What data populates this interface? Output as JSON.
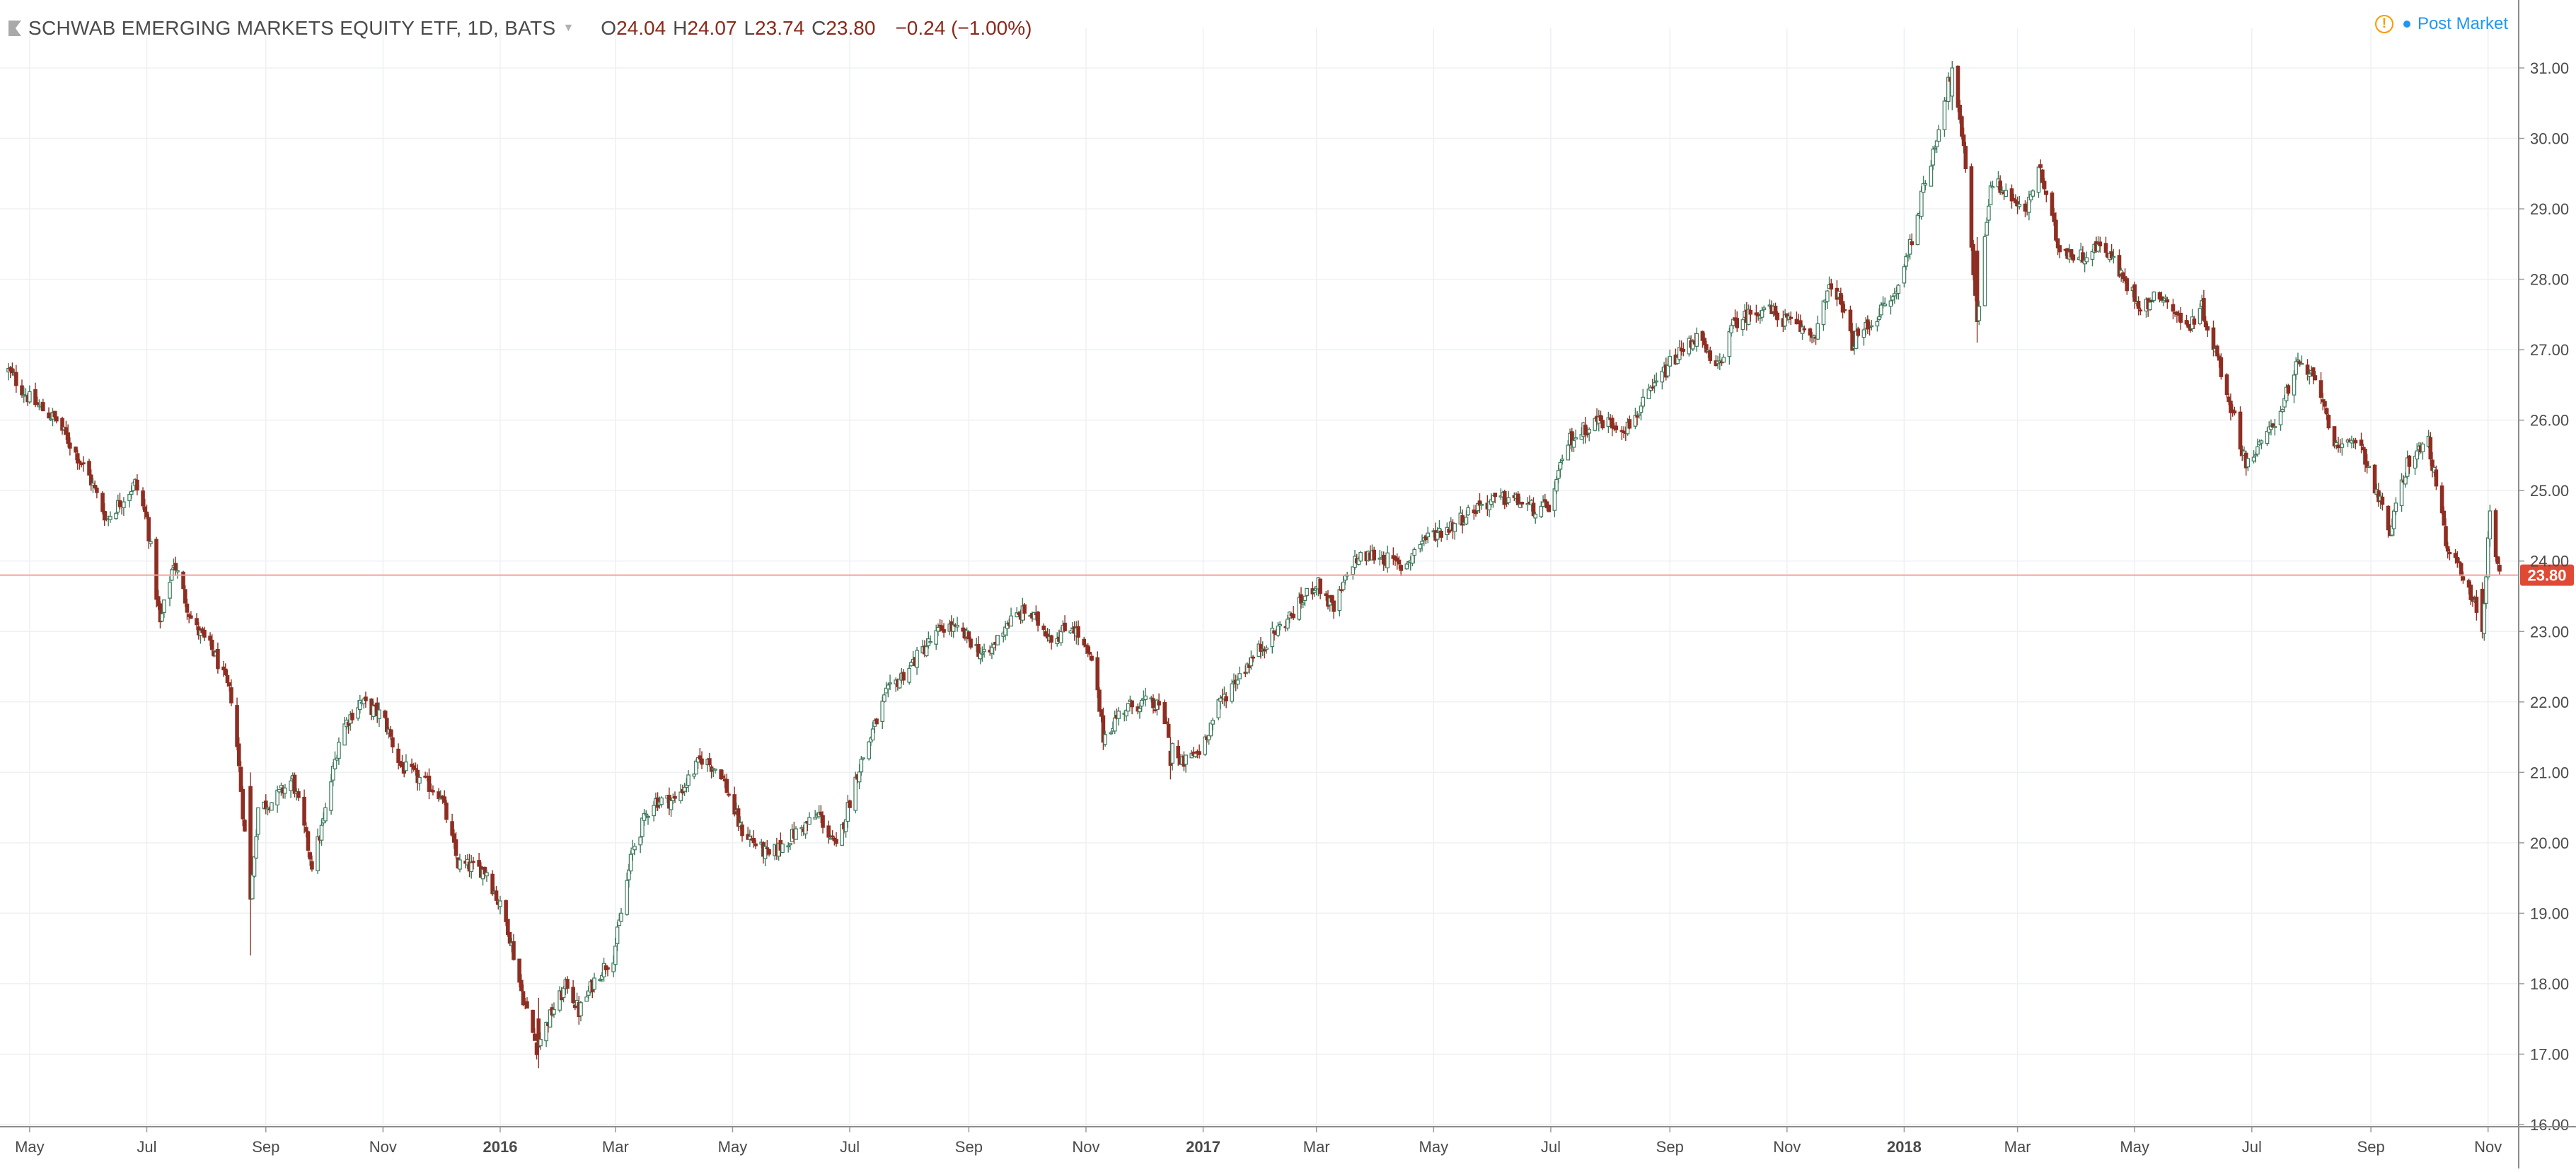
{
  "header": {
    "title": "SCHWAB EMERGING MARKETS EQUITY ETF, 1D, BATS",
    "open_key": "O",
    "open": "24.04",
    "high_key": "H",
    "high": "24.07",
    "low_key": "L",
    "low": "23.74",
    "close_key": "C",
    "close": "23.80",
    "change": "−0.24 (−1.00%)"
  },
  "post_market": {
    "label": "Post Market",
    "warning_icon": "warning-circle-icon",
    "indicator_icon": "status-dot-icon"
  },
  "colors": {
    "up": "#3d7a5c",
    "up_fill": "#ffffff",
    "down": "#8e2e22",
    "down_fill": "#8e2e22",
    "last_price_line": "#f0a59b",
    "last_price_badge": "#e04a35",
    "grid": "#eef0f3",
    "axis_text": "#4a4a4a"
  },
  "chart_data": {
    "type": "candlestick",
    "instrument": "SCHWAB EMERGING MARKETS EQUITY ETF",
    "interval": "1D",
    "exchange": "BATS",
    "x_range": [
      "2015-04-20",
      "2018-11-07"
    ],
    "ylim": [
      16,
      31.2
    ],
    "y_ticks": [
      "16.00",
      "17.00",
      "18.00",
      "19.00",
      "20.00",
      "21.00",
      "22.00",
      "23.00",
      "24.00",
      "25.00",
      "26.00",
      "27.00",
      "28.00",
      "29.00",
      "30.00",
      "31.00"
    ],
    "x_ticks": [
      {
        "date": "2015-05-01",
        "label": "May",
        "bold": false
      },
      {
        "date": "2015-07-01",
        "label": "Jul",
        "bold": false
      },
      {
        "date": "2015-09-01",
        "label": "Sep",
        "bold": false
      },
      {
        "date": "2015-11-01",
        "label": "Nov",
        "bold": false
      },
      {
        "date": "2016-01-01",
        "label": "2016",
        "bold": true
      },
      {
        "date": "2016-03-01",
        "label": "Mar",
        "bold": false
      },
      {
        "date": "2016-05-01",
        "label": "May",
        "bold": false
      },
      {
        "date": "2016-07-01",
        "label": "Jul",
        "bold": false
      },
      {
        "date": "2016-09-01",
        "label": "Sep",
        "bold": false
      },
      {
        "date": "2016-11-01",
        "label": "Nov",
        "bold": false
      },
      {
        "date": "2017-01-01",
        "label": "2017",
        "bold": true
      },
      {
        "date": "2017-03-01",
        "label": "Mar",
        "bold": false
      },
      {
        "date": "2017-05-01",
        "label": "May",
        "bold": false
      },
      {
        "date": "2017-07-01",
        "label": "Jul",
        "bold": false
      },
      {
        "date": "2017-09-01",
        "label": "Sep",
        "bold": false
      },
      {
        "date": "2017-11-01",
        "label": "Nov",
        "bold": false
      },
      {
        "date": "2018-01-01",
        "label": "2018",
        "bold": true
      },
      {
        "date": "2018-03-01",
        "label": "Mar",
        "bold": false
      },
      {
        "date": "2018-05-01",
        "label": "May",
        "bold": false
      },
      {
        "date": "2018-07-01",
        "label": "Jul",
        "bold": false
      },
      {
        "date": "2018-09-01",
        "label": "Sep",
        "bold": false
      },
      {
        "date": "2018-11-01",
        "label": "Nov",
        "bold": false
      }
    ],
    "last_price": 23.8,
    "last_price_label": "23.80",
    "close_path": [
      [
        "2015-04-20",
        26.7
      ],
      [
        "2015-05-01",
        26.3
      ],
      [
        "2015-05-15",
        26.0
      ],
      [
        "2015-06-01",
        25.2
      ],
      [
        "2015-06-10",
        24.6
      ],
      [
        "2015-06-25",
        25.1
      ],
      [
        "2015-07-01",
        24.6
      ],
      [
        "2015-07-08",
        23.1
      ],
      [
        "2015-07-15",
        24.0
      ],
      [
        "2015-07-25",
        23.1
      ],
      [
        "2015-08-05",
        22.7
      ],
      [
        "2015-08-15",
        22.0
      ],
      [
        "2015-08-24",
        19.2
      ],
      [
        "2015-08-28",
        20.5
      ],
      [
        "2015-09-05",
        20.6
      ],
      [
        "2015-09-15",
        20.9
      ],
      [
        "2015-09-25",
        19.7
      ],
      [
        "2015-10-01",
        20.3
      ],
      [
        "2015-10-10",
        21.6
      ],
      [
        "2015-10-20",
        22.0
      ],
      [
        "2015-11-01",
        21.8
      ],
      [
        "2015-11-10",
        21.1
      ],
      [
        "2015-11-20",
        20.9
      ],
      [
        "2015-12-01",
        20.7
      ],
      [
        "2015-12-10",
        19.7
      ],
      [
        "2015-12-25",
        19.6
      ],
      [
        "2016-01-05",
        18.8
      ],
      [
        "2016-01-12",
        17.9
      ],
      [
        "2016-01-20",
        17.1
      ],
      [
        "2016-01-28",
        17.6
      ],
      [
        "2016-02-05",
        18.0
      ],
      [
        "2016-02-11",
        17.6
      ],
      [
        "2016-02-20",
        18.1
      ],
      [
        "2016-02-29",
        18.4
      ],
      [
        "2016-03-10",
        19.9
      ],
      [
        "2016-03-20",
        20.6
      ],
      [
        "2016-04-01",
        20.6
      ],
      [
        "2016-04-15",
        21.2
      ],
      [
        "2016-04-25",
        21.0
      ],
      [
        "2016-05-05",
        20.2
      ],
      [
        "2016-05-20",
        19.8
      ],
      [
        "2016-06-01",
        20.1
      ],
      [
        "2016-06-15",
        20.4
      ],
      [
        "2016-06-24",
        19.9
      ],
      [
        "2016-07-05",
        21.0
      ],
      [
        "2016-07-20",
        22.1
      ],
      [
        "2016-08-10",
        22.8
      ],
      [
        "2016-08-20",
        23.1
      ],
      [
        "2016-09-01",
        22.9
      ],
      [
        "2016-09-10",
        22.6
      ],
      [
        "2016-09-20",
        23.1
      ],
      [
        "2016-10-01",
        23.3
      ],
      [
        "2016-10-15",
        22.9
      ],
      [
        "2016-10-25",
        23.1
      ],
      [
        "2016-11-05",
        22.5
      ],
      [
        "2016-11-10",
        21.5
      ],
      [
        "2016-11-20",
        21.9
      ],
      [
        "2016-12-01",
        22.0
      ],
      [
        "2016-12-10",
        21.9
      ],
      [
        "2016-12-20",
        21.1
      ],
      [
        "2016-12-30",
        21.3
      ],
      [
        "2017-01-10",
        22.0
      ],
      [
        "2017-01-20",
        22.4
      ],
      [
        "2017-02-01",
        22.8
      ],
      [
        "2017-02-15",
        23.2
      ],
      [
        "2017-03-01",
        23.7
      ],
      [
        "2017-03-10",
        23.3
      ],
      [
        "2017-03-20",
        24.0
      ],
      [
        "2017-04-01",
        24.1
      ],
      [
        "2017-04-15",
        23.9
      ],
      [
        "2017-04-25",
        24.3
      ],
      [
        "2017-05-10",
        24.5
      ],
      [
        "2017-05-25",
        24.8
      ],
      [
        "2017-06-10",
        24.9
      ],
      [
        "2017-06-25",
        24.7
      ],
      [
        "2017-07-01",
        24.8
      ],
      [
        "2017-07-10",
        25.7
      ],
      [
        "2017-07-25",
        26.0
      ],
      [
        "2017-08-10",
        25.9
      ],
      [
        "2017-08-20",
        26.3
      ],
      [
        "2017-09-01",
        26.8
      ],
      [
        "2017-09-15",
        27.2
      ],
      [
        "2017-09-25",
        26.7
      ],
      [
        "2017-10-05",
        27.4
      ],
      [
        "2017-10-20",
        27.6
      ],
      [
        "2017-11-01",
        27.4
      ],
      [
        "2017-11-15",
        27.2
      ],
      [
        "2017-11-25",
        28.0
      ],
      [
        "2017-12-05",
        27.1
      ],
      [
        "2017-12-15",
        27.4
      ],
      [
        "2017-12-28",
        27.8
      ],
      [
        "2018-01-05",
        28.6
      ],
      [
        "2018-01-15",
        29.7
      ],
      [
        "2018-01-26",
        31.0
      ],
      [
        "2018-02-02",
        29.6
      ],
      [
        "2018-02-08",
        27.4
      ],
      [
        "2018-02-15",
        29.4
      ],
      [
        "2018-02-25",
        29.2
      ],
      [
        "2018-03-05",
        28.9
      ],
      [
        "2018-03-12",
        29.6
      ],
      [
        "2018-03-22",
        28.5
      ],
      [
        "2018-04-01",
        28.3
      ],
      [
        "2018-04-15",
        28.5
      ],
      [
        "2018-04-25",
        28.0
      ],
      [
        "2018-05-05",
        27.6
      ],
      [
        "2018-05-15",
        27.8
      ],
      [
        "2018-05-28",
        27.3
      ],
      [
        "2018-06-05",
        27.6
      ],
      [
        "2018-06-15",
        26.7
      ],
      [
        "2018-06-28",
        25.4
      ],
      [
        "2018-07-05",
        25.6
      ],
      [
        "2018-07-15",
        26.1
      ],
      [
        "2018-07-25",
        26.8
      ],
      [
        "2018-08-05",
        26.5
      ],
      [
        "2018-08-15",
        25.5
      ],
      [
        "2018-08-25",
        25.8
      ],
      [
        "2018-09-05",
        24.9
      ],
      [
        "2018-09-11",
        24.4
      ],
      [
        "2018-09-20",
        25.4
      ],
      [
        "2018-10-01",
        25.7
      ],
      [
        "2018-10-11",
        24.1
      ],
      [
        "2018-10-20",
        23.8
      ],
      [
        "2018-10-29",
        23.0
      ],
      [
        "2018-11-02",
        24.7
      ],
      [
        "2018-11-07",
        23.8
      ]
    ],
    "notable_wicks": [
      {
        "date": "2015-08-24",
        "open": 20.8,
        "high": 21.0,
        "low": 18.4,
        "close": 19.2
      },
      {
        "date": "2016-01-21",
        "open": 17.5,
        "high": 17.8,
        "low": 16.8,
        "close": 17.1
      },
      {
        "date": "2016-12-15",
        "open": 21.3,
        "high": 21.5,
        "low": 20.9,
        "close": 21.1
      },
      {
        "date": "2018-01-26",
        "open": 30.6,
        "high": 31.1,
        "low": 30.4,
        "close": 31.0
      },
      {
        "date": "2018-02-08",
        "open": 28.4,
        "high": 28.6,
        "low": 27.1,
        "close": 27.4
      },
      {
        "date": "2018-10-29",
        "open": 23.6,
        "high": 23.7,
        "low": 22.9,
        "close": 23.0
      }
    ]
  }
}
